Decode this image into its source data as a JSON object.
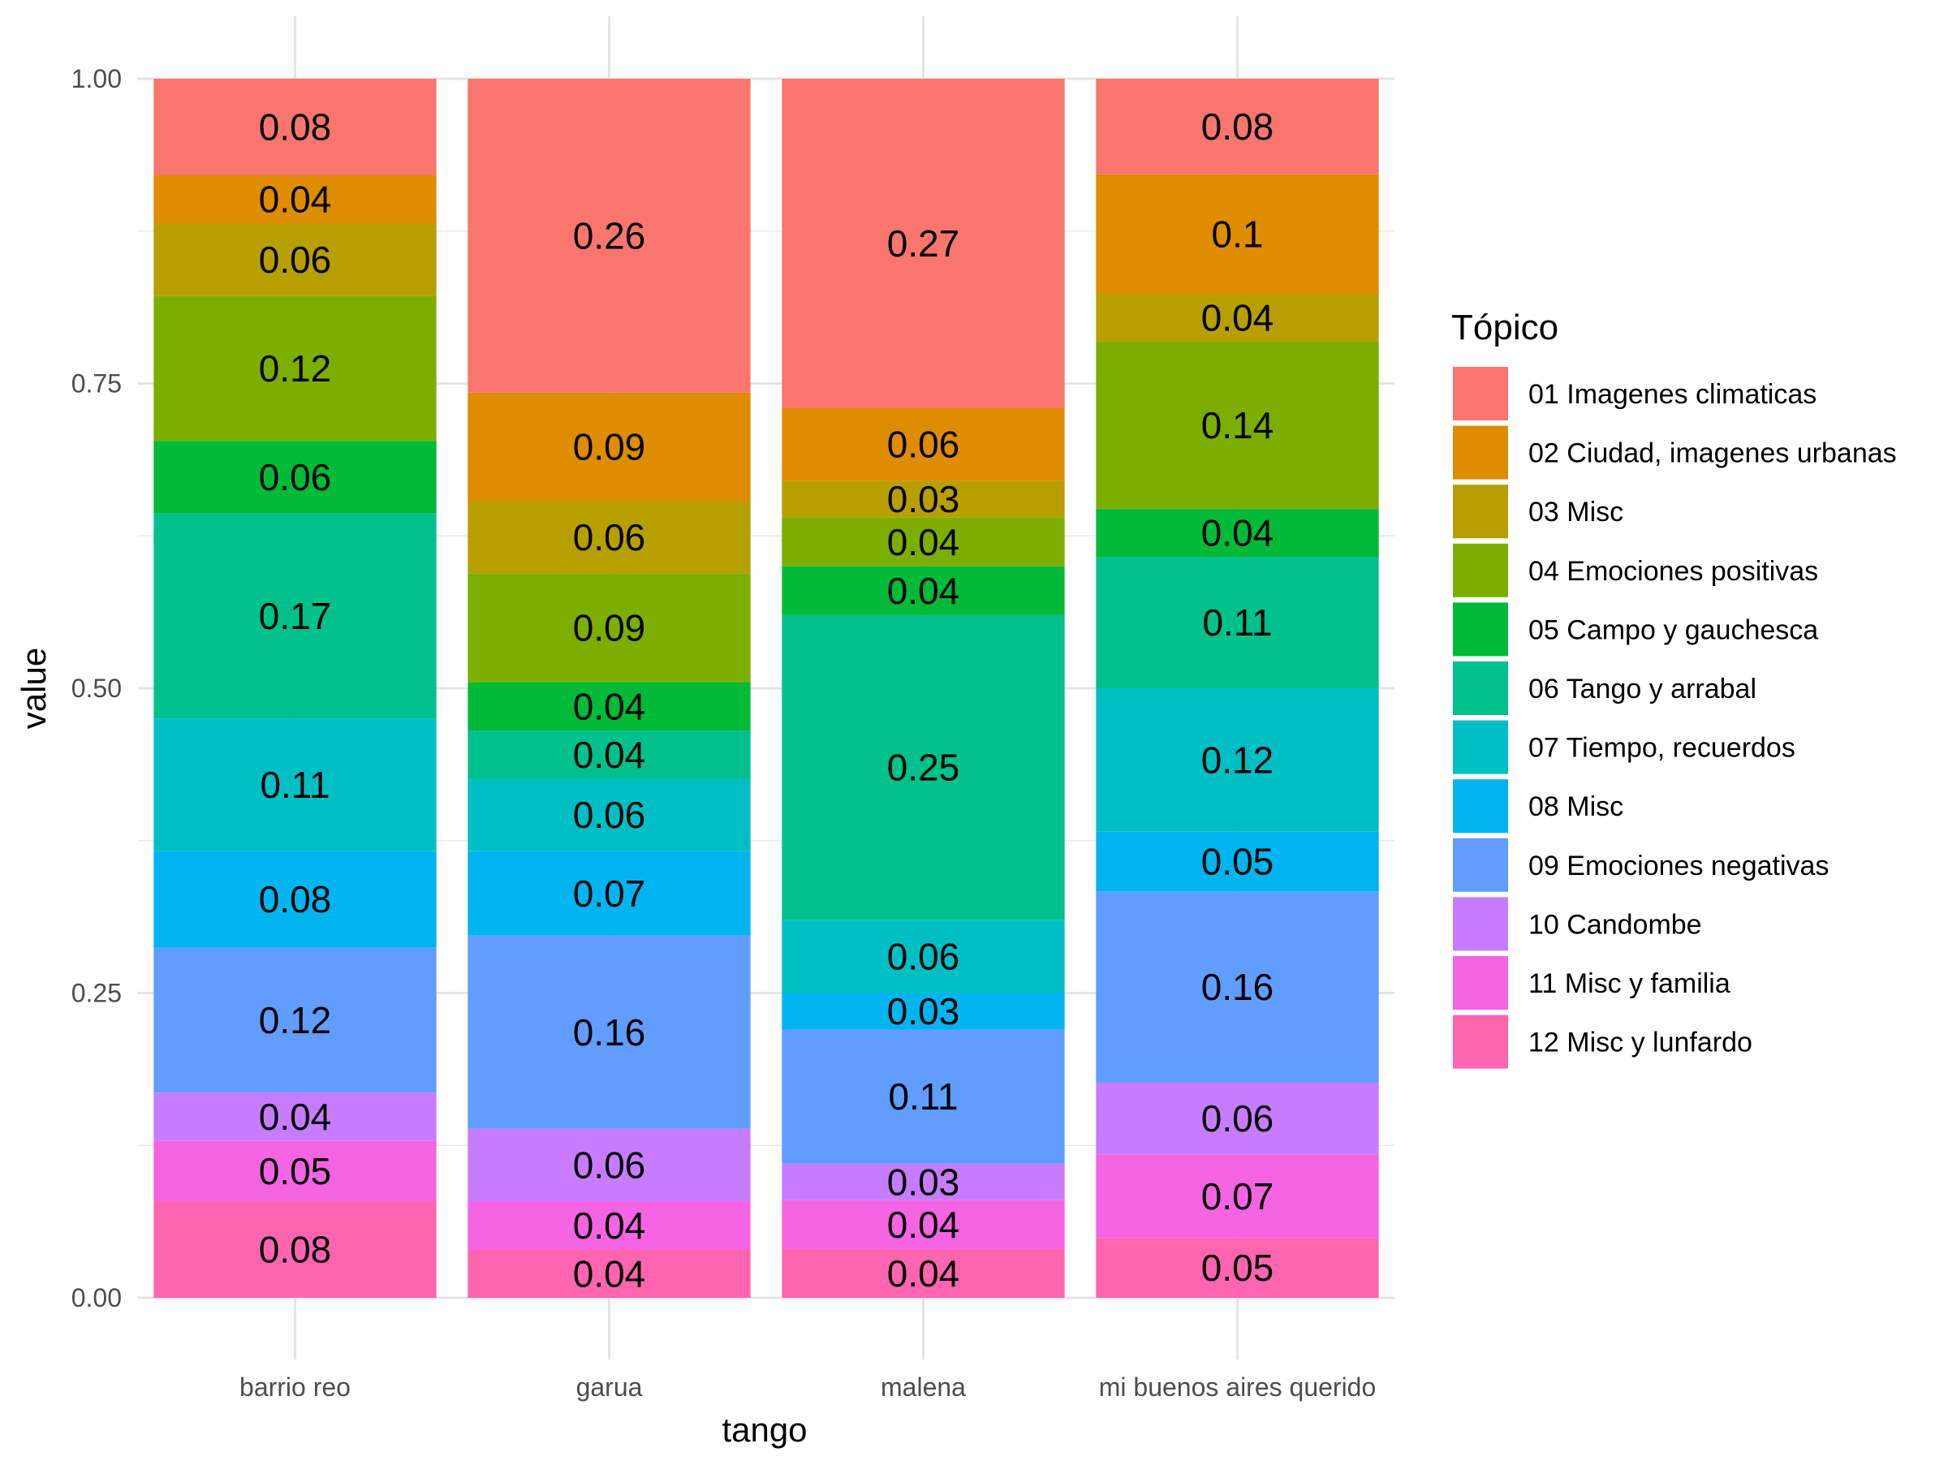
{
  "chart_data": {
    "type": "bar",
    "stacked": true,
    "xlabel": "tango",
    "ylabel": "value",
    "ylim": [
      0,
      1
    ],
    "yticks": [
      "0.00",
      "0.25",
      "0.50",
      "0.75",
      "1.00"
    ],
    "ytick_values": [
      0,
      0.25,
      0.5,
      0.75,
      1.0
    ],
    "grid": true,
    "legend": {
      "title": "Tópico",
      "position": "right"
    },
    "categories": [
      "barrio reo",
      "garua",
      "malena",
      "mi buenos aires querido"
    ],
    "series": [
      {
        "name": "01 Imagenes climaticas",
        "color": "#F8766D",
        "values": [
          0.08,
          0.26,
          0.27,
          0.08
        ],
        "labels": [
          "0.08",
          "0.26",
          "0.27",
          "0.08"
        ]
      },
      {
        "name": "02 Ciudad, imagenes urbanas",
        "color": "#DE8C00",
        "values": [
          0.04,
          0.09,
          0.06,
          0.1
        ],
        "labels": [
          "0.04",
          "0.09",
          "0.06",
          "0.1"
        ]
      },
      {
        "name": "03 Misc",
        "color": "#B79F00",
        "values": [
          0.06,
          0.06,
          0.03,
          0.04
        ],
        "labels": [
          "0.06",
          "0.06",
          "0.03",
          "0.04"
        ]
      },
      {
        "name": "04 Emociones positivas",
        "color": "#7CAE00",
        "values": [
          0.12,
          0.09,
          0.04,
          0.14
        ],
        "labels": [
          "0.12",
          "0.09",
          "0.04",
          "0.14"
        ]
      },
      {
        "name": "05 Campo y gauchesca",
        "color": "#00BA38",
        "values": [
          0.06,
          0.04,
          0.04,
          0.04
        ],
        "labels": [
          "0.06",
          "0.04",
          "0.04",
          "0.04"
        ]
      },
      {
        "name": "06 Tango y arrabal",
        "color": "#00C08B",
        "values": [
          0.17,
          0.04,
          0.25,
          0.11
        ],
        "labels": [
          "0.17",
          "0.04",
          "0.25",
          "0.11"
        ]
      },
      {
        "name": "07 Tiempo, recuerdos",
        "color": "#00BFC4",
        "values": [
          0.11,
          0.06,
          0.06,
          0.12
        ],
        "labels": [
          "0.11",
          "0.06",
          "0.06",
          "0.12"
        ]
      },
      {
        "name": "08 Misc",
        "color": "#00B4F0",
        "values": [
          0.08,
          0.07,
          0.03,
          0.05
        ],
        "labels": [
          "0.08",
          "0.07",
          "0.03",
          "0.05"
        ]
      },
      {
        "name": "09 Emociones negativas",
        "color": "#619CFF",
        "values": [
          0.12,
          0.16,
          0.11,
          0.16
        ],
        "labels": [
          "0.12",
          "0.16",
          "0.11",
          "0.16"
        ]
      },
      {
        "name": "10 Candombe",
        "color": "#C77CFF",
        "values": [
          0.04,
          0.06,
          0.03,
          0.06
        ],
        "labels": [
          "0.04",
          "0.06",
          "0.03",
          "0.06"
        ]
      },
      {
        "name": "11 Misc y familia",
        "color": "#F564E3",
        "values": [
          0.05,
          0.04,
          0.04,
          0.07
        ],
        "labels": [
          "0.05",
          "0.04",
          "0.04",
          "0.07"
        ]
      },
      {
        "name": "12 Misc y lunfardo",
        "color": "#FF64B0",
        "values": [
          0.08,
          0.04,
          0.04,
          0.05
        ],
        "labels": [
          "0.08",
          "0.04",
          "0.04",
          "0.05"
        ]
      }
    ]
  }
}
